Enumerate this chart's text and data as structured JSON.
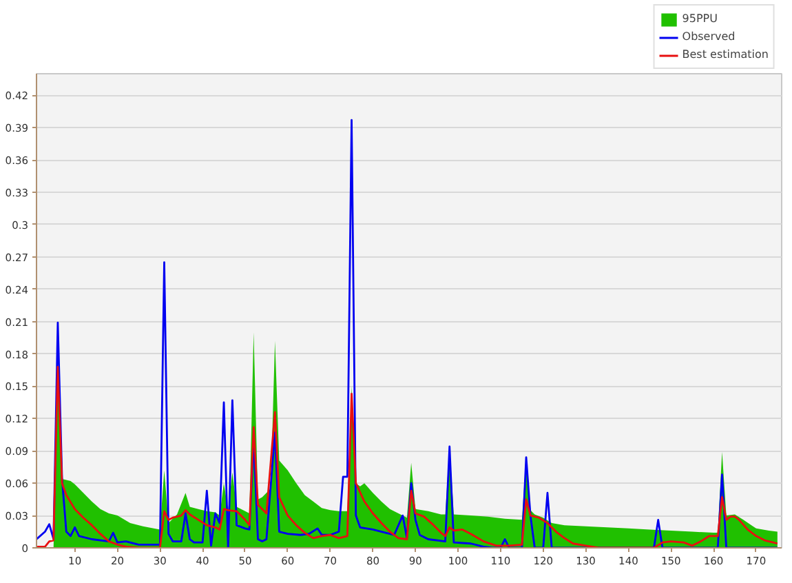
{
  "chart_data": {
    "type": "line",
    "xlim": [
      1,
      176
    ],
    "ylim": [
      0,
      0.44
    ],
    "xticks": [
      10,
      20,
      30,
      40,
      50,
      60,
      70,
      80,
      90,
      100,
      110,
      120,
      130,
      140,
      150,
      160,
      170
    ],
    "yticks": [
      0,
      0.03,
      0.06,
      0.09,
      0.12,
      0.15,
      0.18,
      0.21,
      0.24,
      0.27,
      0.3,
      0.33,
      0.36,
      0.39,
      0.42
    ],
    "grid": "y",
    "legend": "top right",
    "series": [
      {
        "name": "95PPU",
        "type": "area",
        "color": "#20c000",
        "x": [
          1,
          5,
          6,
          7,
          9,
          10,
          12,
          14,
          16,
          18,
          20,
          23,
          26,
          30,
          31,
          32,
          34,
          36,
          37,
          39,
          41,
          43,
          44,
          45,
          46,
          47,
          48,
          50,
          51,
          52,
          53,
          54,
          55,
          56,
          57,
          58,
          60,
          62,
          64,
          66,
          68,
          70,
          72,
          74,
          75,
          76,
          77,
          78,
          80,
          82,
          84,
          86,
          88,
          89,
          90,
          93,
          96,
          97,
          98,
          99,
          103,
          107,
          111,
          115,
          116,
          117,
          118,
          120,
          122,
          125,
          130,
          135,
          140,
          145,
          150,
          155,
          160,
          161,
          162,
          163,
          165,
          167,
          170,
          173,
          175
        ],
        "values": [
          0,
          0,
          0.17,
          0.064,
          0.062,
          0.059,
          0.051,
          0.043,
          0.036,
          0.032,
          0.03,
          0.023,
          0.02,
          0.017,
          0.072,
          0.023,
          0.031,
          0.051,
          0.038,
          0.036,
          0.034,
          0.033,
          0.03,
          0.06,
          0.035,
          0.07,
          0.038,
          0.034,
          0.032,
          0.2,
          0.045,
          0.047,
          0.051,
          0.055,
          0.192,
          0.081,
          0.072,
          0.06,
          0.049,
          0.043,
          0.037,
          0.035,
          0.034,
          0.034,
          0.15,
          0.06,
          0.057,
          0.06,
          0.051,
          0.043,
          0.036,
          0.032,
          0.028,
          0.079,
          0.036,
          0.034,
          0.031,
          0.031,
          0.095,
          0.031,
          0.03,
          0.029,
          0.027,
          0.026,
          0.085,
          0.035,
          0.031,
          0.028,
          0.023,
          0.021,
          0.02,
          0.019,
          0.018,
          0.017,
          0.016,
          0.015,
          0.014,
          0.014,
          0.089,
          0.03,
          0.031,
          0.026,
          0.018,
          0.016,
          0.015
        ]
      },
      {
        "name": "Observed",
        "color": "#0000f0",
        "x": [
          1,
          3,
          4,
          5,
          6,
          7,
          8,
          9,
          10,
          11,
          14,
          18,
          19,
          20,
          22,
          25,
          30,
          31,
          32,
          33,
          35,
          36,
          37,
          38,
          40,
          41,
          42,
          43,
          44,
          45,
          46,
          47,
          48,
          50,
          51,
          52,
          53,
          54,
          55,
          57,
          58,
          60,
          63,
          65,
          67,
          68,
          70,
          72,
          73,
          74,
          75,
          76,
          77,
          80,
          83,
          85,
          87,
          88,
          89,
          90,
          91,
          93,
          97,
          98,
          99,
          103,
          106,
          108,
          110,
          111,
          112,
          115,
          116,
          117,
          118,
          120,
          121,
          122,
          146,
          147,
          148,
          161,
          162,
          163,
          175
        ],
        "values": [
          0.008,
          0.015,
          0.022,
          0.008,
          0.209,
          0.064,
          0.015,
          0.011,
          0.019,
          0.011,
          0.008,
          0.006,
          0.014,
          0.005,
          0.006,
          0.003,
          0.003,
          0.265,
          0.013,
          0.006,
          0.006,
          0.032,
          0.008,
          0.005,
          0.005,
          0.053,
          0.002,
          0.032,
          0.023,
          0.135,
          0,
          0.137,
          0.021,
          0.018,
          0.017,
          0.1,
          0.008,
          0.006,
          0.008,
          0.107,
          0.015,
          0.013,
          0.012,
          0.013,
          0.018,
          0.012,
          0.012,
          0.015,
          0.066,
          0.066,
          0.397,
          0.03,
          0.019,
          0.017,
          0.014,
          0.012,
          0.03,
          0.009,
          0.06,
          0.026,
          0.012,
          0.008,
          0.006,
          0.094,
          0.005,
          0.004,
          0.001,
          0,
          0,
          0.008,
          0,
          0,
          0.084,
          0.03,
          0,
          0,
          0.051,
          0,
          0,
          0.026,
          0,
          0,
          0.068,
          0,
          0
        ]
      },
      {
        "name": "Best estimation",
        "color": "#e81010",
        "x": [
          1,
          3,
          4,
          5,
          6,
          7,
          8,
          10,
          12,
          14,
          16,
          18,
          20,
          22,
          25,
          30,
          31,
          32,
          33,
          35,
          36,
          37,
          39,
          41,
          43,
          44,
          45,
          46,
          48,
          50,
          51,
          52,
          53,
          54,
          55,
          57,
          58,
          60,
          62,
          64,
          66,
          68,
          70,
          72,
          74,
          75,
          76,
          78,
          80,
          82,
          84,
          86,
          88,
          89,
          90,
          92,
          94,
          96,
          97,
          98,
          99,
          101,
          103,
          106,
          109,
          112,
          115,
          116,
          117,
          119,
          121,
          123,
          125,
          127,
          130,
          133,
          146,
          148,
          150,
          153,
          155,
          157,
          159,
          161,
          162,
          163,
          164,
          165,
          166,
          168,
          170,
          172,
          174,
          175
        ],
        "values": [
          0.001,
          0.001,
          0.006,
          0.007,
          0.168,
          0.06,
          0.049,
          0.036,
          0.028,
          0.021,
          0.013,
          0.006,
          0.003,
          0.001,
          0,
          0,
          0.034,
          0.026,
          0.028,
          0.03,
          0.035,
          0.031,
          0.026,
          0.021,
          0.019,
          0.017,
          0.036,
          0.035,
          0.034,
          0.026,
          0.021,
          0.112,
          0.04,
          0.036,
          0.032,
          0.126,
          0.047,
          0.03,
          0.021,
          0.014,
          0.009,
          0.011,
          0.012,
          0.009,
          0.011,
          0.143,
          0.06,
          0.043,
          0.032,
          0.023,
          0.015,
          0.009,
          0.008,
          0.053,
          0.032,
          0.029,
          0.022,
          0.014,
          0.011,
          0.019,
          0.016,
          0.017,
          0.013,
          0.006,
          0.002,
          0.002,
          0.003,
          0.045,
          0.03,
          0.028,
          0.023,
          0.015,
          0.009,
          0.004,
          0.002,
          0,
          0,
          0.005,
          0.006,
          0.005,
          0.002,
          0.006,
          0.011,
          0.011,
          0.047,
          0.026,
          0.029,
          0.029,
          0.026,
          0.017,
          0.011,
          0.007,
          0.005,
          0.004
        ]
      }
    ]
  }
}
